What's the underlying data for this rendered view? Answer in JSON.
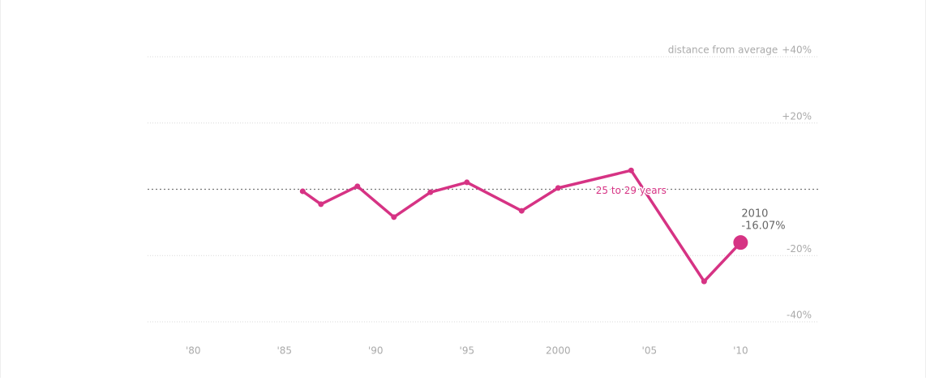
{
  "chart_data": {
    "type": "line",
    "y_axis_label": "distance from average",
    "x": [
      1986,
      1987,
      1989,
      1991,
      1993,
      1995,
      1998,
      2000,
      2004,
      2008,
      2010
    ],
    "series": [
      {
        "name": "25 to 29 years",
        "color": "#d63384",
        "values": [
          -0.6,
          -4.5,
          0.9,
          -8.4,
          -0.9,
          2.1,
          -6.5,
          0.4,
          5.7,
          -27.8,
          -16.07
        ],
        "value_labels": [
          null,
          null,
          null,
          null,
          null,
          null,
          null,
          null,
          null,
          null,
          "-16.07%"
        ]
      }
    ],
    "xlim": [
      1977.5,
      2014.25
    ],
    "xticks": [
      {
        "value": 1980,
        "label": "'80"
      },
      {
        "value": 1985,
        "label": "'85"
      },
      {
        "value": 1990,
        "label": "'90"
      },
      {
        "value": 1995,
        "label": "'95"
      },
      2000,
      {
        "value": 2005,
        "label": "'05"
      },
      {
        "value": 2010,
        "label": "'10"
      }
    ],
    "ylim": [
      -40,
      40
    ],
    "yticks": [
      {
        "value": 40,
        "label": "+40%"
      },
      {
        "value": 20,
        "label": "+20%"
      },
      {
        "value": -20,
        "label": "-20%"
      },
      {
        "value": -40,
        "label": "-40%"
      }
    ],
    "reference_line": 0,
    "grid": true
  }
}
